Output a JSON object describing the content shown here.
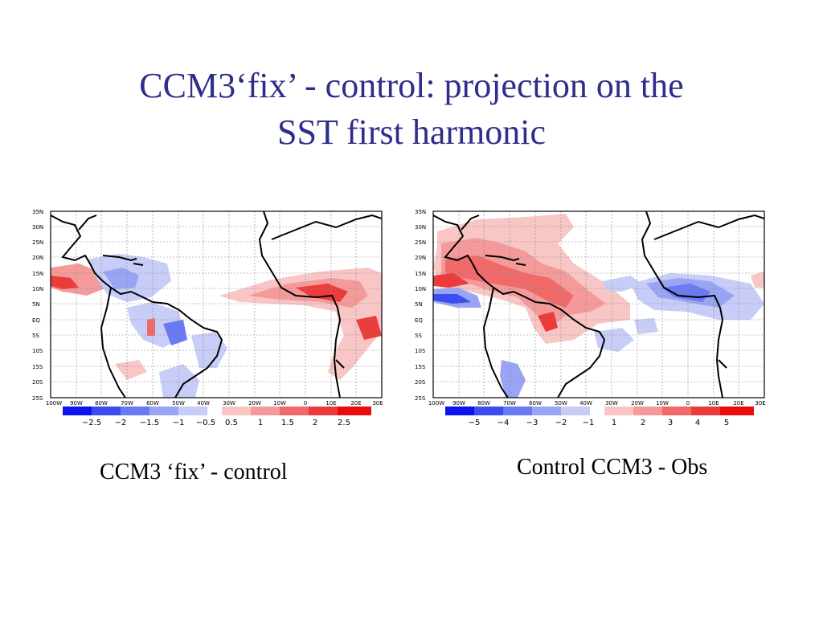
{
  "slide": {
    "title_line1": "CCM3‘fix’ - control: projection on the",
    "title_line2": "SST first harmonic"
  },
  "colors": {
    "title": "#2e2e8a",
    "neg": [
      "#0a14ee",
      "#3a4ef0",
      "#6a7af2",
      "#9aa4f4",
      "#c8cdf8"
    ],
    "pos": [
      "#f9c6c6",
      "#f59a9a",
      "#f06a6a",
      "#ec3b3b",
      "#ea0c0c"
    ]
  },
  "maps": [
    {
      "caption": "CCM3 ‘fix’ - control",
      "lat_labels": [
        "35N",
        "30N",
        "25N",
        "20N",
        "15N",
        "10N",
        "5N",
        "EQ",
        "5S",
        "10S",
        "15S",
        "20S",
        "25S"
      ],
      "lon_labels": [
        "100W",
        "90W",
        "80W",
        "70W",
        "60W",
        "50W",
        "40W",
        "30W",
        "20W",
        "10W",
        "0",
        "10E",
        "20E",
        "30E"
      ],
      "colorbar_labels": [
        "−2.5",
        "−2",
        "−1.5",
        "−1",
        "−0.5",
        "0.5",
        "1",
        "1.5",
        "2",
        "2.5"
      ]
    },
    {
      "caption": "Control CCM3 - Obs",
      "lat_labels": [
        "35N",
        "30N",
        "25N",
        "20N",
        "15N",
        "10N",
        "5N",
        "EQ",
        "5S",
        "10S",
        "15S",
        "20S",
        "25S"
      ],
      "lon_labels": [
        "100W",
        "90W",
        "80W",
        "70W",
        "60W",
        "50W",
        "40W",
        "30W",
        "20W",
        "10W",
        "0",
        "10E",
        "20E",
        "30E"
      ],
      "colorbar_labels": [
        "−5",
        "−4",
        "−3",
        "−2",
        "−1",
        "1",
        "2",
        "3",
        "4",
        "5"
      ]
    }
  ]
}
